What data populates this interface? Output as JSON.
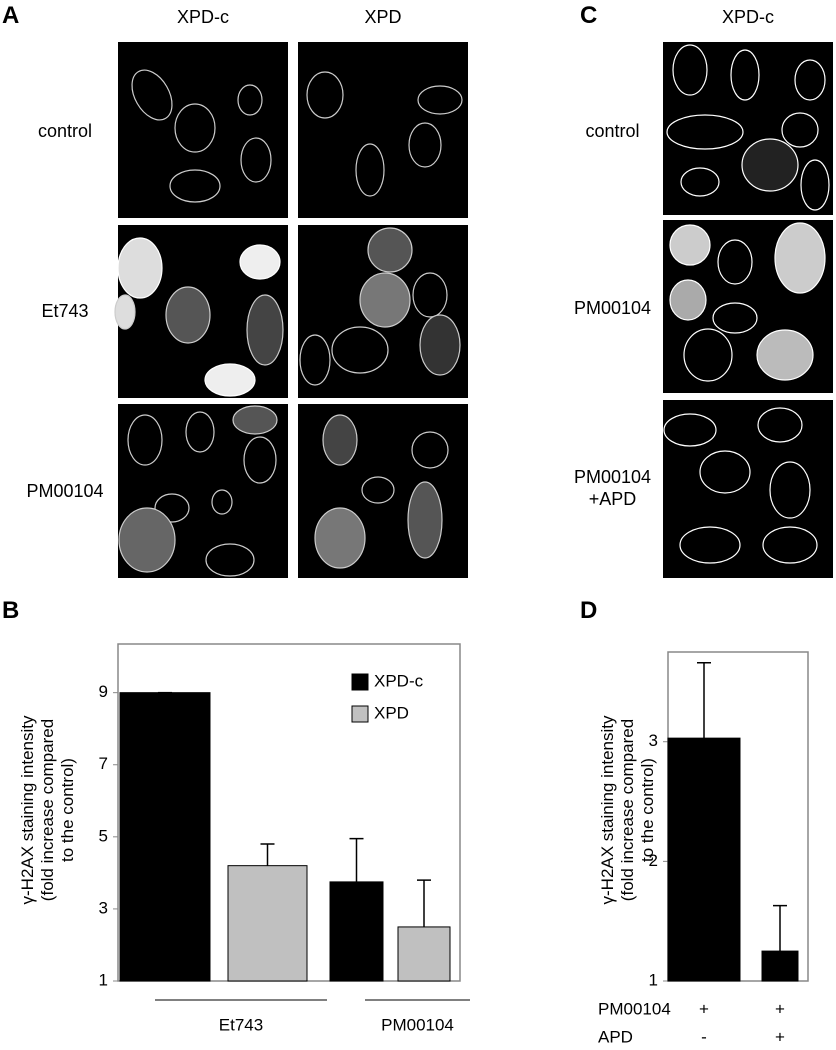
{
  "panels": {
    "A": {
      "label": "A",
      "columns": [
        "XPD-c",
        "XPD"
      ],
      "rows": [
        "control",
        "Et743",
        "PM00104"
      ]
    },
    "C": {
      "label": "C",
      "columns": [
        "XPD-c"
      ],
      "rows": [
        "control",
        "PM00104",
        "PM00104\n+APD"
      ]
    }
  },
  "chart_data": [
    {
      "type": "bar",
      "panel": "B",
      "y_label": "γ-H2AX staining intensity\n(fold increase compared\nto the control)",
      "categories": [
        "Et743",
        "PM00104"
      ],
      "series": [
        {
          "name": "XPD-c",
          "color": "#000000",
          "values": [
            9.0,
            3.75
          ],
          "errors": [
            0,
            1.2
          ]
        },
        {
          "name": "XPD",
          "color": "#c0c0c0",
          "values": [
            4.2,
            2.5
          ],
          "errors": [
            0.6,
            1.3
          ]
        }
      ],
      "ylim": [
        1,
        10.35
      ],
      "yticks": [
        1,
        3,
        5,
        7,
        9
      ],
      "legend": "upper right"
    },
    {
      "type": "bar",
      "panel": "D",
      "y_label": "γ-H2AX staining intensity\n(fold increase compared\nto the control)",
      "series": [
        {
          "color": "#000000",
          "values": [
            3.03,
            1.25
          ],
          "errors": [
            0.63,
            0.38
          ]
        }
      ],
      "conditions": [
        {
          "name": "PM00104",
          "values": [
            "+",
            "+"
          ]
        },
        {
          "name": "APD",
          "values": [
            "-",
            "+"
          ]
        }
      ],
      "ylim": [
        1,
        3.75
      ],
      "yticks": [
        1,
        2,
        3
      ]
    }
  ]
}
